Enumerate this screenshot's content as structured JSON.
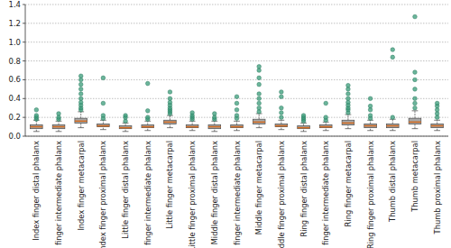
{
  "chart_data": {
    "type": "box",
    "categories": [
      "Index finger distal phalanx",
      "Index finger intermediate phalanx",
      "Index finger metacarpal",
      "Index finger proximal phalanx",
      "Little finger distal phalanx",
      "Little finger intermediate phalanx",
      "Little finger metacarpal",
      "Little finger proximal phalanx",
      "Middle finger distal phalanx",
      "Middle finger intermediate phalanx",
      "Middle finger metacarpal",
      "Middle finger proximal phalanx",
      "Ring finger distal phalanx",
      "Ring finger intermediate phalanx",
      "Ring finger metacarpal",
      "Ring finger proximal phalanx",
      "Thumb distal phalanx",
      "Thumb metacarpal",
      "Thumb proximal phalanx"
    ],
    "whisker_low": [
      0.05,
      0.05,
      0.09,
      0.07,
      0.05,
      0.06,
      0.09,
      0.06,
      0.05,
      0.06,
      0.09,
      0.07,
      0.05,
      0.06,
      0.08,
      0.06,
      0.06,
      0.08,
      0.06
    ],
    "q1": [
      0.08,
      0.08,
      0.14,
      0.1,
      0.08,
      0.09,
      0.13,
      0.09,
      0.08,
      0.09,
      0.13,
      0.1,
      0.08,
      0.09,
      0.12,
      0.09,
      0.09,
      0.13,
      0.09
    ],
    "median": [
      0.1,
      0.1,
      0.16,
      0.11,
      0.09,
      0.1,
      0.15,
      0.1,
      0.1,
      0.1,
      0.15,
      0.11,
      0.09,
      0.1,
      0.14,
      0.11,
      0.11,
      0.15,
      0.11
    ],
    "q3": [
      0.12,
      0.12,
      0.19,
      0.13,
      0.11,
      0.12,
      0.17,
      0.12,
      0.12,
      0.12,
      0.18,
      0.13,
      0.11,
      0.12,
      0.17,
      0.13,
      0.13,
      0.19,
      0.13
    ],
    "whisker_high": [
      0.17,
      0.16,
      0.26,
      0.17,
      0.14,
      0.16,
      0.22,
      0.16,
      0.16,
      0.16,
      0.24,
      0.17,
      0.14,
      0.15,
      0.23,
      0.17,
      0.18,
      0.27,
      0.17
    ],
    "outliers": [
      [
        0.18,
        0.2,
        0.22,
        0.28
      ],
      [
        0.18,
        0.2,
        0.24
      ],
      [
        0.28,
        0.3,
        0.33,
        0.36,
        0.4,
        0.45,
        0.5,
        0.55,
        0.6,
        0.64
      ],
      [
        0.19,
        0.22,
        0.35,
        0.62
      ],
      [
        0.16,
        0.2,
        0.22
      ],
      [
        0.18,
        0.2,
        0.27,
        0.56
      ],
      [
        0.24,
        0.26,
        0.28,
        0.3,
        0.33,
        0.36,
        0.4,
        0.47
      ],
      [
        0.18,
        0.2,
        0.22,
        0.25
      ],
      [
        0.18,
        0.2,
        0.24
      ],
      [
        0.19,
        0.22,
        0.28,
        0.35,
        0.42
      ],
      [
        0.26,
        0.3,
        0.35,
        0.4,
        0.45,
        0.55,
        0.62,
        0.7,
        0.74
      ],
      [
        0.2,
        0.25,
        0.3,
        0.42,
        0.47
      ],
      [
        0.16,
        0.18,
        0.2,
        0.22
      ],
      [
        0.17,
        0.2,
        0.35
      ],
      [
        0.25,
        0.28,
        0.3,
        0.33,
        0.36,
        0.4,
        0.45,
        0.5,
        0.54
      ],
      [
        0.19,
        0.22,
        0.28,
        0.32,
        0.4
      ],
      [
        0.2,
        0.84,
        0.92
      ],
      [
        0.3,
        0.35,
        0.4,
        0.5,
        0.6,
        0.68,
        1.27
      ],
      [
        0.2,
        0.24,
        0.28,
        0.32,
        0.35
      ]
    ],
    "ylim": [
      0,
      1.4
    ],
    "yticks": [
      {
        "value": 0,
        "label": "0.0"
      },
      0.2,
      0.4,
      0.6,
      0.8,
      {
        "value": 1,
        "label": "1.0"
      },
      1.2,
      1.4
    ],
    "grid": true,
    "color": "#555555"
  }
}
